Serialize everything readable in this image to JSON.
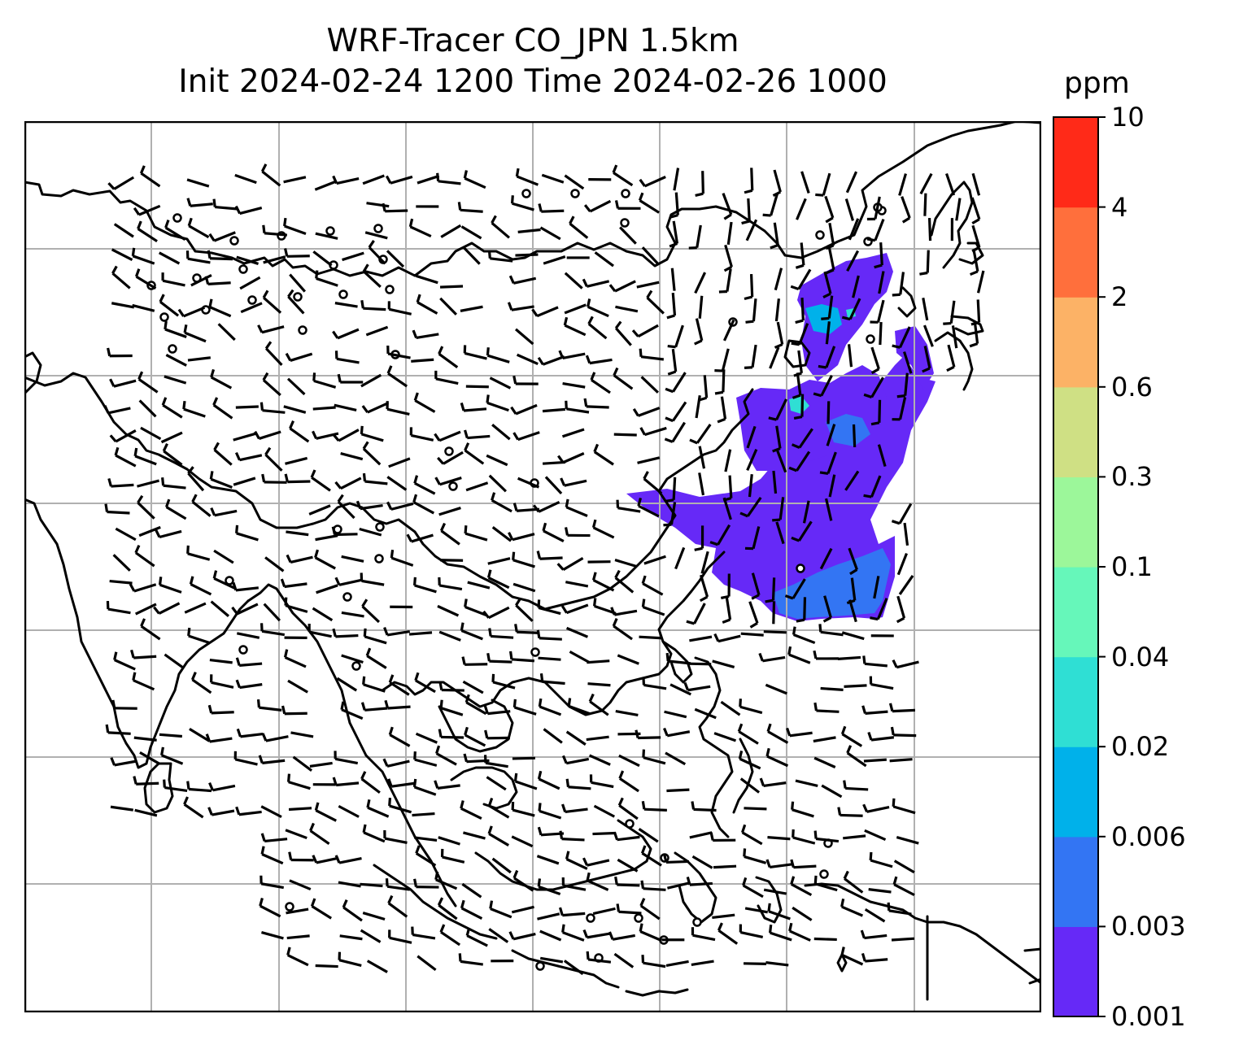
{
  "title": {
    "line1": "WRF-Tracer CO_JPN 1.5km",
    "line2": "Init 2024-02-24 1200 Time 2024-02-26 1000"
  },
  "colorbar": {
    "unit": "ppm",
    "levels": [
      "0.001",
      "0.003",
      "0.006",
      "0.02",
      "0.04",
      "0.1",
      "0.3",
      "0.6",
      "2",
      "4",
      "10"
    ],
    "colors": [
      "#6629f7",
      "#3375f3",
      "#00b1ea",
      "#2fdfd4",
      "#66f7ba",
      "#9cf79a",
      "#cfe084",
      "#fcb266",
      "#ff6f3c",
      "#ff2a18"
    ]
  },
  "map": {
    "gridlines": true,
    "coastline_color": "#000000",
    "grid_color": "#b0b0b0",
    "barb_color": "#000000"
  }
}
